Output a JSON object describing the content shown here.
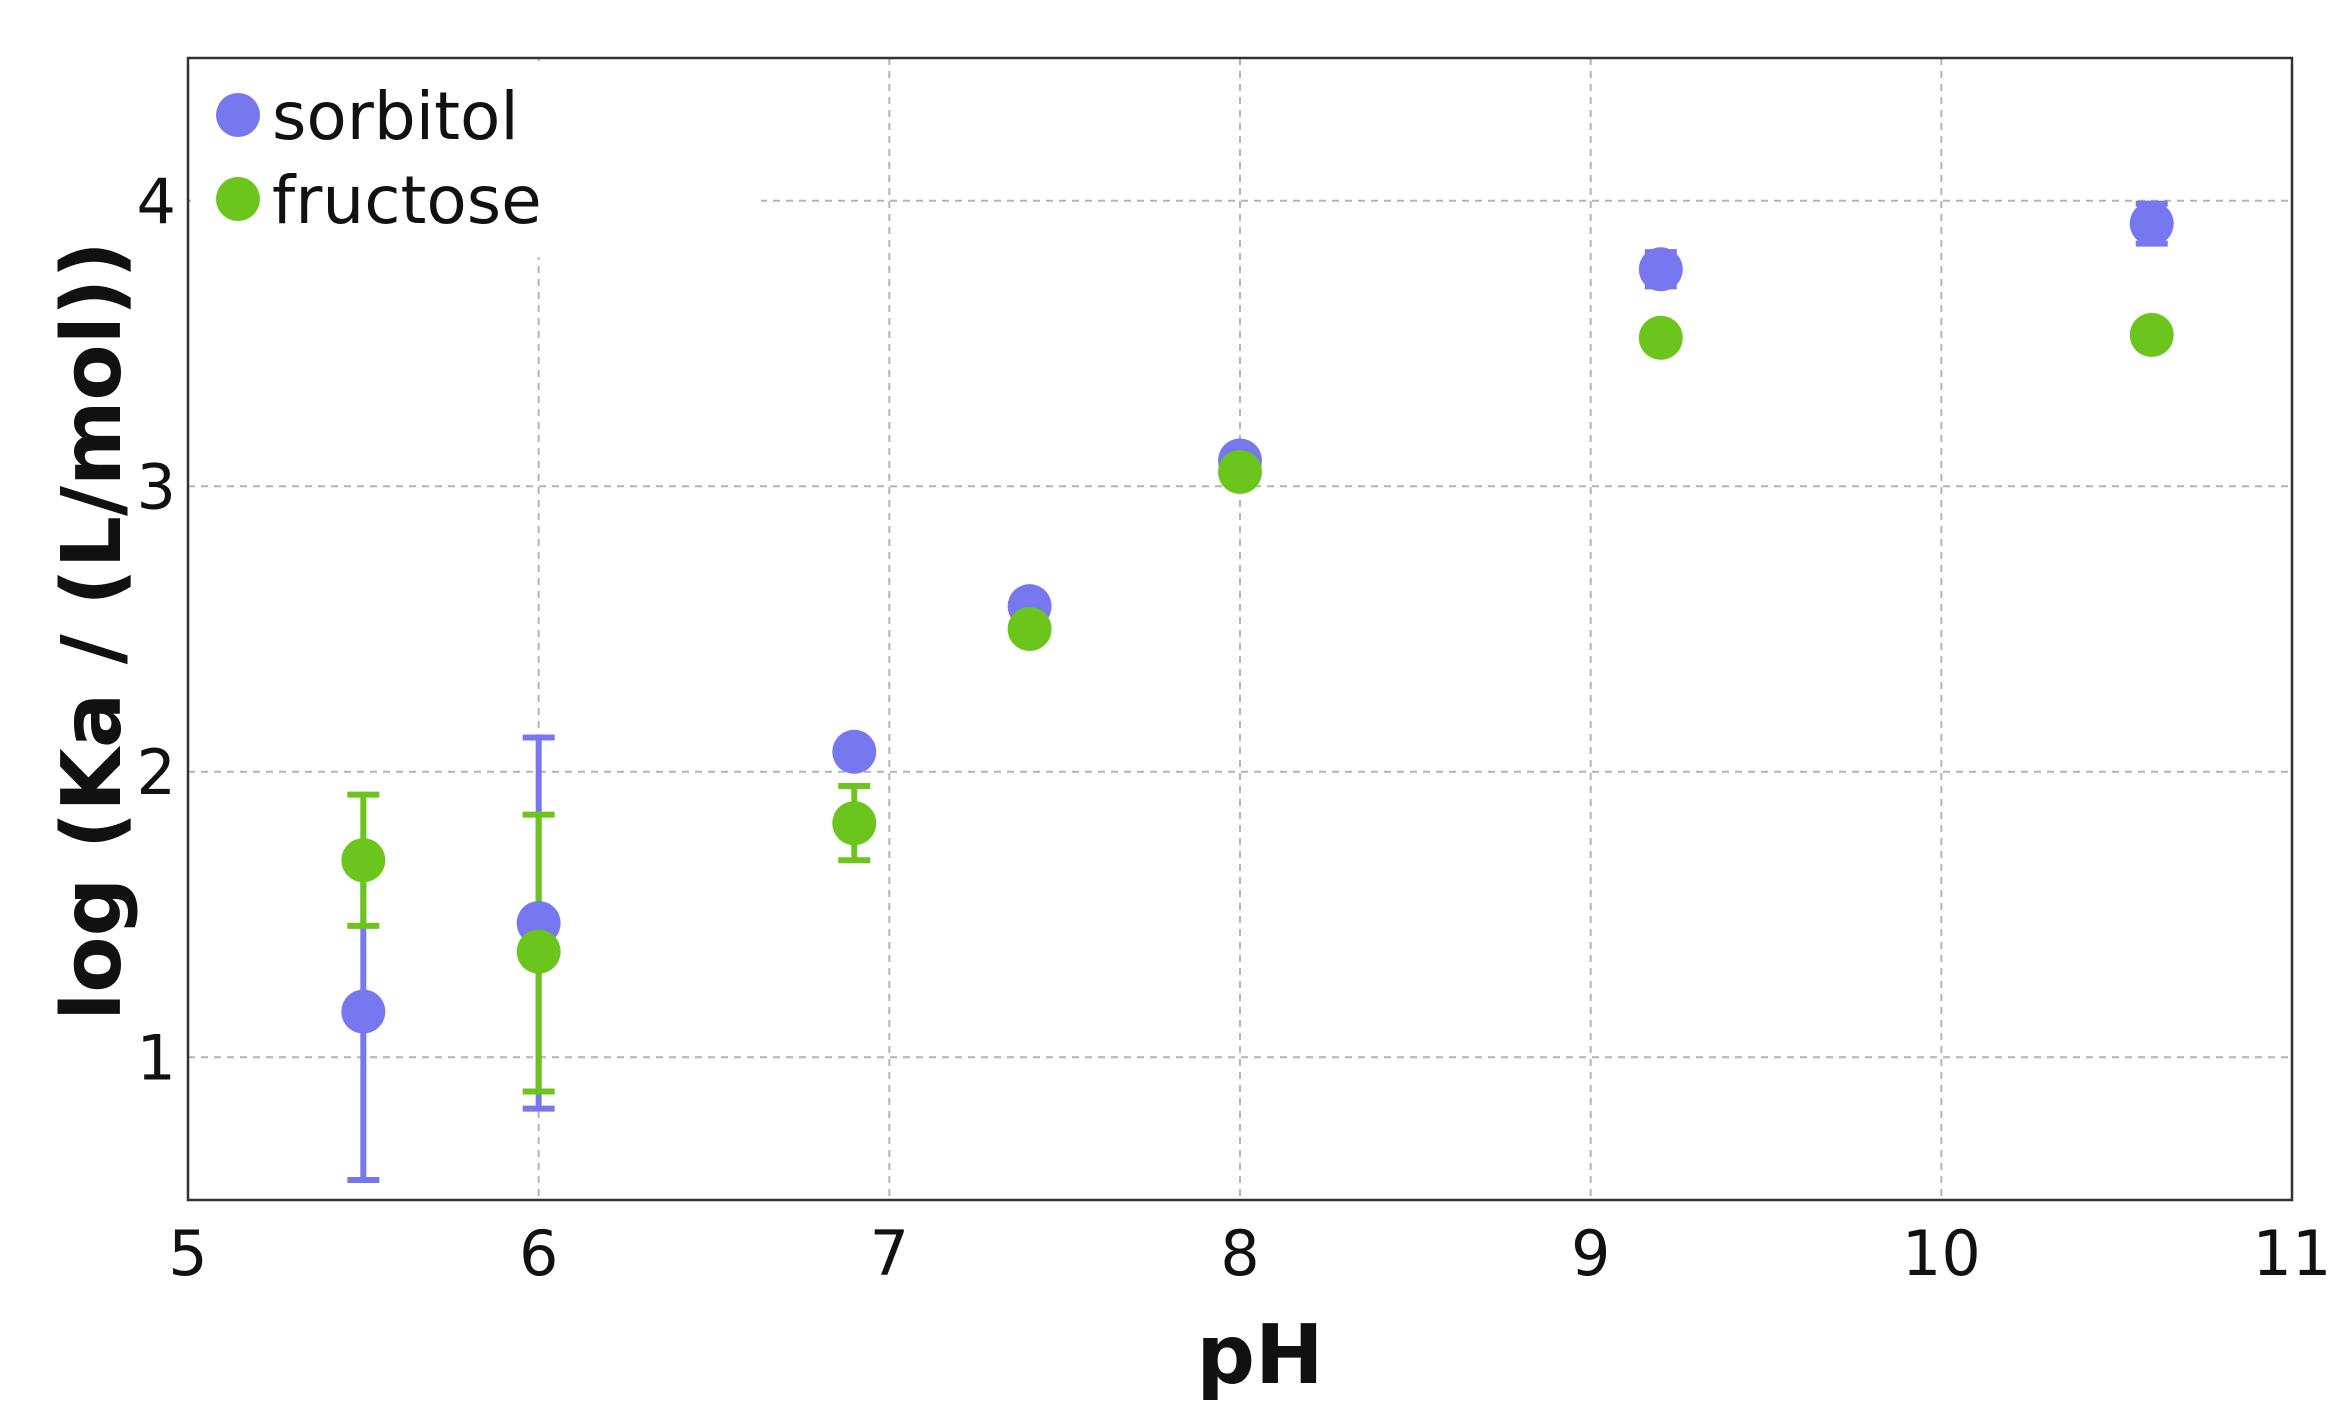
{
  "chart_data": {
    "type": "scatter",
    "title": "",
    "xlabel": "pH",
    "ylabel": "log (Ka  / (L/mol))",
    "xlim": [
      5,
      11
    ],
    "ylim": [
      0.5,
      4.5
    ],
    "xticks": [
      5,
      6,
      7,
      8,
      9,
      10,
      11
    ],
    "yticks": [
      1,
      2,
      3,
      4
    ],
    "grid": true,
    "legend_position": "top-left",
    "error_bars": true,
    "series": [
      {
        "name": "sorbitol",
        "color": "#7778f0",
        "points": [
          {
            "x": 5.5,
            "y": 1.16,
            "ylow": 0.57,
            "yhigh": 1.72
          },
          {
            "x": 6.0,
            "y": 1.47,
            "ylow": 0.82,
            "yhigh": 2.12
          },
          {
            "x": 6.9,
            "y": 2.07,
            "ylow": 2.03,
            "yhigh": 2.11
          },
          {
            "x": 7.4,
            "y": 2.58,
            "ylow": 2.55,
            "yhigh": 2.61
          },
          {
            "x": 8.0,
            "y": 3.09,
            "ylow": 3.07,
            "yhigh": 3.11
          },
          {
            "x": 9.2,
            "y": 3.76,
            "ylow": 3.7,
            "yhigh": 3.82
          },
          {
            "x": 10.6,
            "y": 3.92,
            "ylow": 3.85,
            "yhigh": 3.99
          }
        ]
      },
      {
        "name": "fructose",
        "color": "#6cc51c",
        "points": [
          {
            "x": 5.5,
            "y": 1.69,
            "ylow": 1.46,
            "yhigh": 1.92
          },
          {
            "x": 6.0,
            "y": 1.37,
            "ylow": 0.88,
            "yhigh": 1.85
          },
          {
            "x": 6.9,
            "y": 1.82,
            "ylow": 1.69,
            "yhigh": 1.95
          },
          {
            "x": 7.4,
            "y": 2.5,
            "ylow": 2.5,
            "yhigh": 2.5
          },
          {
            "x": 8.0,
            "y": 3.05,
            "ylow": 3.05,
            "yhigh": 3.05
          },
          {
            "x": 9.2,
            "y": 3.52,
            "ylow": 3.52,
            "yhigh": 3.52
          },
          {
            "x": 10.6,
            "y": 3.53,
            "ylow": 3.53,
            "yhigh": 3.53
          }
        ]
      }
    ]
  }
}
